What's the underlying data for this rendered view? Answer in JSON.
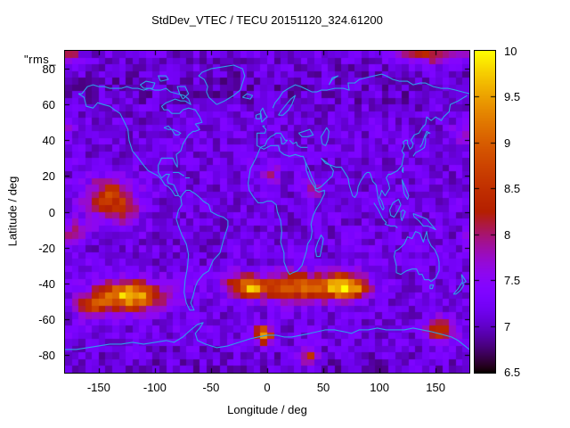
{
  "title": "StdDev_VTEC / TECU 20151120_324.61200",
  "overlay_label": "\"rms_",
  "axes": {
    "x": {
      "label": "Longitude / deg",
      "ticks": [
        -150,
        -100,
        -50,
        0,
        50,
        100,
        150
      ],
      "range": [
        -180,
        180
      ]
    },
    "y": {
      "label": "Latitude / deg",
      "ticks": [
        80,
        60,
        40,
        20,
        0,
        -20,
        -40,
        -60,
        -80
      ],
      "range": [
        -90,
        90
      ]
    }
  },
  "colorbar": {
    "min": 6.5,
    "max": 10,
    "ticks": [
      6.5,
      7,
      7.5,
      8,
      8.5,
      9,
      9.5,
      10
    ],
    "palette": "gnuplot pm3d black-violet-magenta-red-orange-yellow"
  },
  "chart_data": {
    "type": "heatmap",
    "title": "StdDev_VTEC / TECU 20151120_324.61200",
    "xlabel": "Longitude / deg",
    "ylabel": "Latitude / deg",
    "xlim": [
      -180,
      180
    ],
    "ylim": [
      -90,
      90
    ],
    "zlim": [
      6.5,
      10
    ],
    "units": "TECU",
    "grid": {
      "cols": 60,
      "rows": 48
    },
    "base_value": 7.15,
    "noise_amplitude": 0.28,
    "coastline_color": "#2f9fe8",
    "border_color": "#000000",
    "hotspots": [
      {
        "lon": -140,
        "lat": 7,
        "slon": 15,
        "slat": 8,
        "amp": 1.5,
        "note": "central Pacific red patch"
      },
      {
        "lon": -126,
        "lat": 0,
        "slon": 6,
        "slat": 4,
        "amp": 0.6,
        "note": "SE tail of Pacific patch"
      },
      {
        "lon": -172,
        "lat": -12,
        "slon": 7,
        "slat": 5,
        "amp": 0.75,
        "note": "small red spot west Pacific edge"
      },
      {
        "lon": -122,
        "lat": -47,
        "slon": 20,
        "slat": 5.5,
        "amp": 2.6,
        "note": "SE Pacific yellow blob"
      },
      {
        "lon": -155,
        "lat": -53,
        "slon": 11,
        "slat": 5,
        "amp": 1.15,
        "note": "SW extension of Pacific blob"
      },
      {
        "lon": 25,
        "lat": -42,
        "slon": 30,
        "slat": 5.5,
        "amp": 1.9,
        "note": "south Atlantic-Indian orange band"
      },
      {
        "lon": 66,
        "lat": -42,
        "slon": 10,
        "slat": 5,
        "amp": 1.9,
        "note": "Indian Ocean yellow core"
      },
      {
        "lon": -13,
        "lat": -43,
        "slon": 5,
        "slat": 3.5,
        "amp": 1.5,
        "note": "yellow cell west end of band"
      },
      {
        "lon": -25,
        "lat": -41,
        "slon": 8,
        "slat": 4.5,
        "amp": 1.2,
        "note": "south Atlantic orange"
      },
      {
        "lon": 82,
        "lat": -42,
        "slon": 7,
        "slat": 4.5,
        "amp": 1.2,
        "note": "east end of band"
      },
      {
        "lon": -3,
        "lat": -69,
        "slon": 5,
        "slat": 3.5,
        "amp": 2.5,
        "note": "bright yellow Antarctic-coast spot"
      },
      {
        "lon": 37,
        "lat": -81,
        "slon": 5,
        "slat": 3.5,
        "amp": 1.3,
        "note": "orange spot near bottom"
      },
      {
        "lon": 155,
        "lat": -66,
        "slon": 9,
        "slat": 4.5,
        "amp": 1.45,
        "note": "red patch south of Australia/NZ"
      },
      {
        "lon": 148,
        "lat": 88,
        "slon": 22,
        "slat": 3.5,
        "amp": 1.15,
        "note": "dark red band at top-right edge"
      },
      {
        "lon": -175,
        "lat": 89,
        "slon": 5,
        "slat": 2.5,
        "amp": 1.05,
        "note": "red cell top-left corner"
      },
      {
        "lon": 40,
        "lat": 12,
        "slon": 4.5,
        "slat": 3.5,
        "amp": 1.0,
        "note": "dark red cell over NE Africa"
      },
      {
        "lon": 2,
        "lat": 21,
        "slon": 7,
        "slat": 5,
        "amp": 0.6,
        "note": "magenta patch north Africa"
      },
      {
        "lon": 176,
        "lat": 44,
        "slon": 7,
        "slat": 5,
        "amp": 0.65,
        "note": "reddish patch right edge mid-lat"
      },
      {
        "lon": 0,
        "lat": 70,
        "slon": 400,
        "slat": 10,
        "amp": -0.12,
        "note": "darker north polar band"
      },
      {
        "lon": 0,
        "lat": -88,
        "slon": 400,
        "slat": 6,
        "amp": -0.1,
        "note": "darker south polar edge"
      }
    ]
  }
}
